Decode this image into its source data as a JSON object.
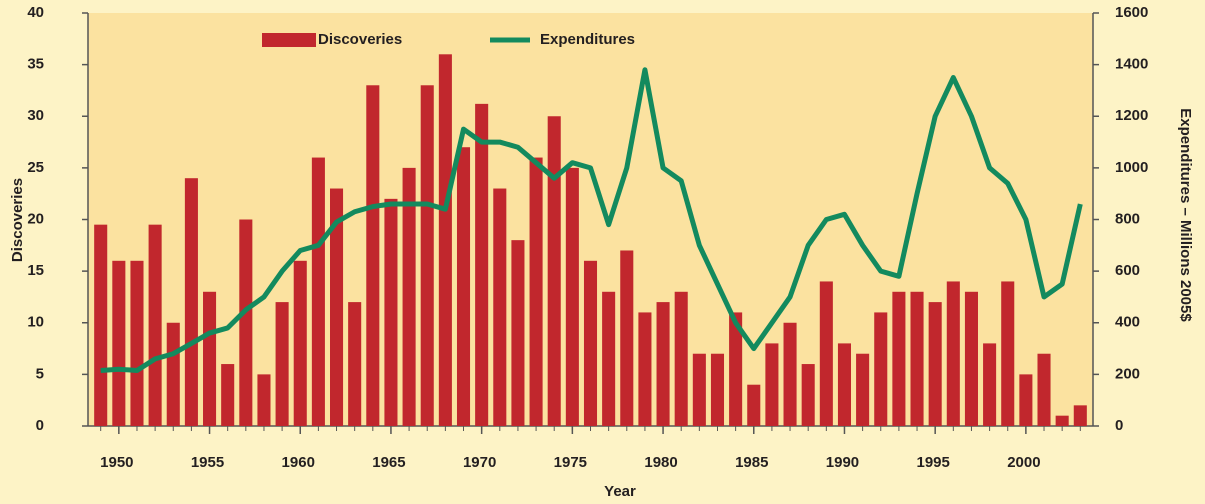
{
  "chart_data": {
    "type": "bar",
    "x": [
      1949,
      1950,
      1951,
      1952,
      1953,
      1954,
      1955,
      1956,
      1957,
      1958,
      1959,
      1960,
      1961,
      1962,
      1963,
      1964,
      1965,
      1966,
      1967,
      1968,
      1969,
      1970,
      1971,
      1972,
      1973,
      1974,
      1975,
      1976,
      1977,
      1978,
      1979,
      1980,
      1981,
      1982,
      1983,
      1984,
      1985,
      1986,
      1987,
      1988,
      1989,
      1990,
      1991,
      1992,
      1993,
      1994,
      1995,
      1996,
      1997,
      1998,
      1999,
      2000,
      2001,
      2002,
      2003
    ],
    "series": [
      {
        "name": "Discoveries",
        "type": "bar",
        "color": "#c1272d",
        "values": [
          19.5,
          16,
          16,
          19.5,
          10,
          24,
          13,
          6,
          20,
          5,
          12,
          16,
          26,
          23,
          12,
          33,
          22,
          25,
          33,
          36,
          27,
          31.2,
          23,
          18,
          26,
          30,
          25,
          16,
          13,
          17,
          11,
          12,
          13,
          7,
          7,
          11,
          4,
          8,
          10,
          6,
          14,
          8,
          7,
          11,
          13,
          13,
          12,
          14,
          13,
          8,
          14,
          5,
          7,
          1,
          2
        ]
      },
      {
        "name": "Expenditures",
        "type": "line",
        "axis": "y2",
        "color": "#138a5e",
        "values": [
          215,
          220,
          215,
          260,
          280,
          320,
          360,
          380,
          450,
          500,
          600,
          680,
          700,
          790,
          830,
          850,
          860,
          860,
          860,
          840,
          1150,
          1100,
          1100,
          1080,
          1020,
          960,
          1020,
          1000,
          780,
          1000,
          1380,
          1000,
          950,
          700,
          550,
          400,
          300,
          400,
          500,
          700,
          800,
          820,
          700,
          600,
          580,
          900,
          1200,
          1350,
          1200,
          1000,
          940,
          800,
          500,
          550,
          860
        ]
      }
    ],
    "xlabel": "Year",
    "ylabel": "Discoveries",
    "y2label": "Expenditures – Millions 2005$",
    "xlim": [
      1948.3,
      2003.7
    ],
    "xticks": [
      1950,
      1955,
      1960,
      1965,
      1970,
      1975,
      1980,
      1985,
      1990,
      1995,
      2000
    ],
    "ylim": [
      0,
      40
    ],
    "yticks": [
      0,
      5,
      10,
      15,
      20,
      25,
      30,
      35,
      40
    ],
    "y2lim": [
      0,
      1600
    ],
    "y2ticks": [
      0,
      200,
      400,
      600,
      800,
      1000,
      1200,
      1400,
      1600
    ],
    "legend": "top"
  }
}
